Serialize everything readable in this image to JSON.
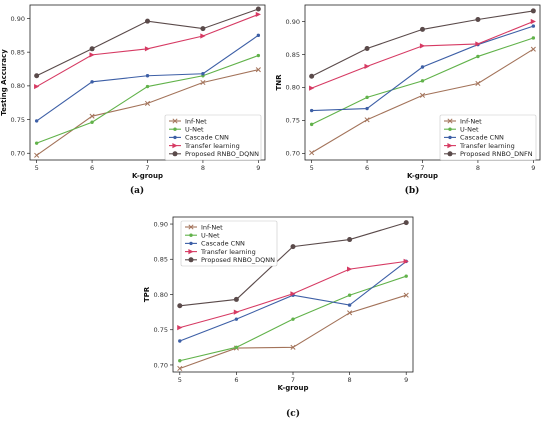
{
  "colors": {
    "Inf-Net": "#a3735a",
    "U-Net": "#61b24a",
    "Cascade CNN": "#3d5fa6",
    "Transfer learning": "#d63a63",
    "Proposed": "#5a4a4a"
  },
  "chart_data": [
    {
      "type": "line",
      "caption": "(a)",
      "xlabel": "K-group",
      "ylabel": "Testing Accuracy",
      "x": [
        5,
        6,
        7,
        8,
        9
      ],
      "ylim": [
        0.69,
        0.92
      ],
      "yticks": [
        "0.70",
        "0.75",
        "0.80",
        "0.85",
        "0.90"
      ],
      "legend_position": "lower-right",
      "series": [
        {
          "name": "Inf-Net",
          "color_key": "Inf-Net",
          "marker": "x",
          "values": [
            0.697,
            0.755,
            0.774,
            0.805,
            0.824
          ]
        },
        {
          "name": "U-Net",
          "color_key": "U-Net",
          "marker": "dot",
          "values": [
            0.715,
            0.746,
            0.799,
            0.815,
            0.845
          ]
        },
        {
          "name": "Cascade CNN",
          "color_key": "Cascade CNN",
          "marker": "dot",
          "values": [
            0.748,
            0.806,
            0.815,
            0.818,
            0.875
          ]
        },
        {
          "name": "Transfer learning",
          "color_key": "Transfer learning",
          "marker": "tri",
          "values": [
            0.799,
            0.846,
            0.855,
            0.874,
            0.906
          ]
        },
        {
          "name": "Proposed RNBO_DQNN",
          "color_key": "Proposed",
          "marker": "big",
          "values": [
            0.815,
            0.855,
            0.896,
            0.885,
            0.914
          ]
        }
      ]
    },
    {
      "type": "line",
      "caption": "(b)",
      "xlabel": "K-group",
      "ylabel": "TNR",
      "x": [
        5,
        6,
        7,
        8,
        9
      ],
      "ylim": [
        0.69,
        0.925
      ],
      "yticks": [
        "0.70",
        "0.75",
        "0.80",
        "0.85",
        "0.90"
      ],
      "legend_position": "lower-right",
      "series": [
        {
          "name": "Inf-Net",
          "color_key": "Inf-Net",
          "marker": "x",
          "values": [
            0.701,
            0.751,
            0.788,
            0.806,
            0.858
          ]
        },
        {
          "name": "U-Net",
          "color_key": "U-Net",
          "marker": "dot",
          "values": [
            0.744,
            0.785,
            0.81,
            0.847,
            0.875
          ]
        },
        {
          "name": "Cascade CNN",
          "color_key": "Cascade CNN",
          "marker": "dot",
          "values": [
            0.765,
            0.768,
            0.831,
            0.865,
            0.893
          ]
        },
        {
          "name": "Transfer learning",
          "color_key": "Transfer learning",
          "marker": "tri",
          "values": [
            0.799,
            0.832,
            0.863,
            0.866,
            0.9
          ]
        },
        {
          "name": "Proposed RNBO_DNFN",
          "color_key": "Proposed",
          "marker": "big",
          "values": [
            0.817,
            0.859,
            0.888,
            0.903,
            0.916
          ]
        }
      ]
    },
    {
      "type": "line",
      "caption": "(c)",
      "xlabel": "K-group",
      "ylabel": "TPR",
      "x": [
        5,
        6,
        7,
        8,
        9
      ],
      "ylim": [
        0.69,
        0.91
      ],
      "yticks": [
        "0.70",
        "0.75",
        "0.80",
        "0.85",
        "0.90"
      ],
      "legend_position": "upper-left",
      "series": [
        {
          "name": "Inf-Net",
          "color_key": "Inf-Net",
          "marker": "x",
          "values": [
            0.695,
            0.724,
            0.725,
            0.774,
            0.799
          ]
        },
        {
          "name": "U-Net",
          "color_key": "U-Net",
          "marker": "dot",
          "values": [
            0.706,
            0.725,
            0.765,
            0.799,
            0.826
          ]
        },
        {
          "name": "Cascade CNN",
          "color_key": "Cascade CNN",
          "marker": "dot",
          "values": [
            0.734,
            0.765,
            0.799,
            0.785,
            0.847
          ]
        },
        {
          "name": "Transfer learning",
          "color_key": "Transfer learning",
          "marker": "tri",
          "values": [
            0.753,
            0.775,
            0.801,
            0.836,
            0.847
          ]
        },
        {
          "name": "Proposed RNBO_DQNN",
          "color_key": "Proposed",
          "marker": "big",
          "values": [
            0.784,
            0.793,
            0.868,
            0.878,
            0.902
          ]
        }
      ]
    }
  ]
}
